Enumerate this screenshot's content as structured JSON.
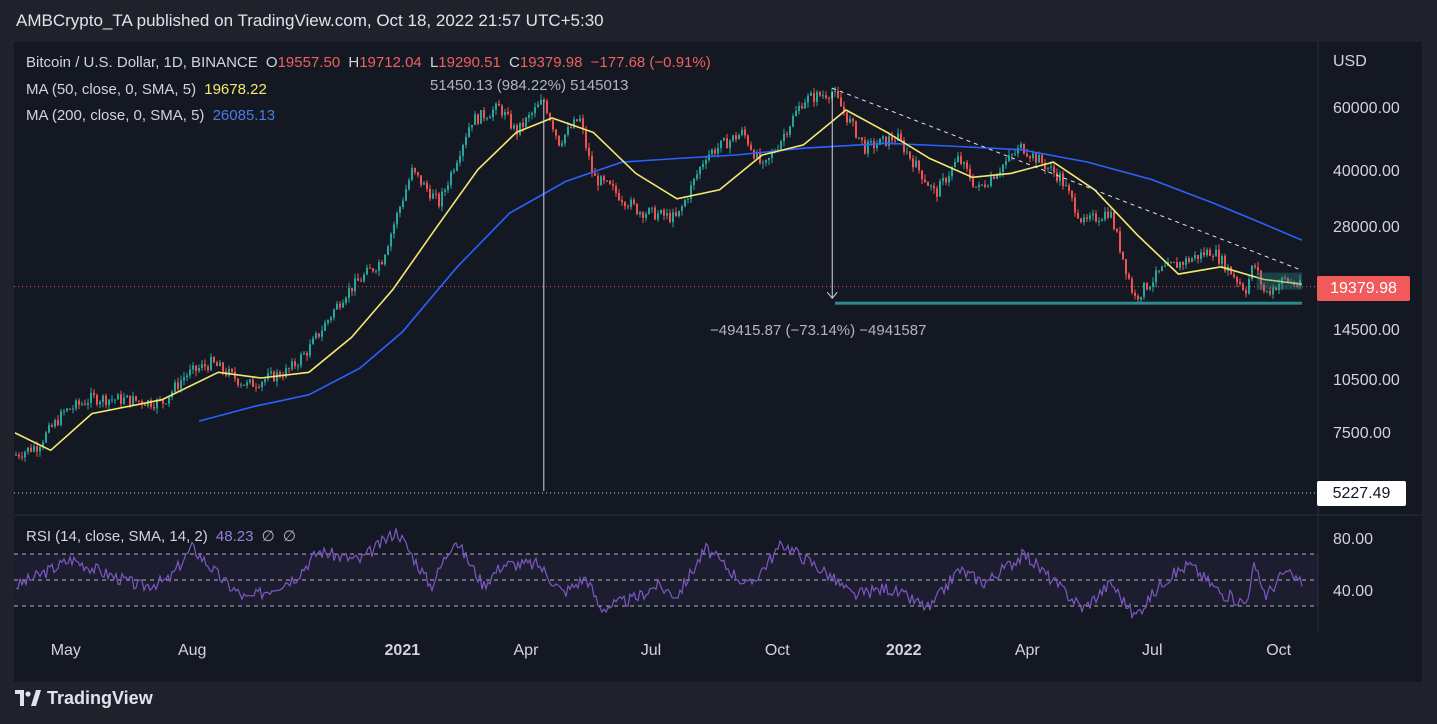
{
  "header": {
    "publisher": "AMBCrypto_TA published on TradingView.com, Oct 18, 2022 21:57 UTC+5:30"
  },
  "footer": {
    "brand": "TradingView"
  },
  "legend": {
    "symbol": "Bitcoin / U.S. Dollar, 1D, BINANCE",
    "open_label": "O",
    "open": "19557.50",
    "high_label": "H",
    "high": "19712.04",
    "low_label": "L",
    "low": "19290.51",
    "close_label": "C",
    "close": "19379.98",
    "change": "−177.68 (−0.91%)",
    "ma50_label": "MA (50, close, 0, SMA, 5)",
    "ma50_value": "19678.22",
    "ma200_label": "MA (200, close, 0, SMA, 5)",
    "ma200_value": "26085.13",
    "rsi_label": "RSI (14, close, SMA, 14, 2)",
    "rsi_value": "48.23",
    "rsi_extra1": "∅",
    "rsi_extra2": "∅"
  },
  "annotations": {
    "measure_up": "51450.13 (984.22%) 5145013",
    "measure_down": "−49415.87 (−73.14%) −4941587",
    "last_price": "19379.98",
    "low_marker": "5227.49"
  },
  "colors": {
    "background": "#20222b",
    "panel": "#141823",
    "up": "#26a69a",
    "down": "#ef5350",
    "ma50": "#f4e96e",
    "ma200": "#2962ff",
    "rsi": "#7e57c2",
    "last_price": "#f05a5a"
  },
  "chart_data": [
    {
      "type": "candlestick",
      "title": "Bitcoin / U.S. Dollar, 1D, BINANCE",
      "ylabel": "USD",
      "y_scale": "log",
      "ylim": [
        5000,
        72000
      ],
      "y_ticks": [
        "60000.00",
        "40000.00",
        "28000.00",
        "14500.00",
        "10500.00",
        "7500.00"
      ],
      "x_ticks": [
        "May",
        "Aug",
        "2021",
        "Apr",
        "Jul",
        "Oct",
        "2022",
        "Apr",
        "Jul",
        "Oct"
      ],
      "x_tick_dates": [
        "2020-05-01",
        "2020-08-01",
        "2021-01-01",
        "2021-04-01",
        "2021-07-01",
        "2021-10-01",
        "2022-01-01",
        "2022-04-01",
        "2022-07-01",
        "2022-10-01"
      ],
      "x_range": [
        "2020-03-25",
        "2022-10-18"
      ],
      "series": [
        {
          "name": "BTCUSD",
          "points": [
            [
              "2020-03-25",
              6600
            ],
            [
              "2020-04-10",
              7000
            ],
            [
              "2020-04-30",
              8700
            ],
            [
              "2020-05-20",
              9500
            ],
            [
              "2020-06-15",
              9400
            ],
            [
              "2020-07-10",
              9200
            ],
            [
              "2020-07-27",
              11000
            ],
            [
              "2020-08-15",
              11900
            ],
            [
              "2020-09-10",
              10300
            ],
            [
              "2020-10-10",
              11300
            ],
            [
              "2020-10-25",
              13000
            ],
            [
              "2020-11-20",
              18500
            ],
            [
              "2020-12-17",
              23000
            ],
            [
              "2021-01-08",
              40500
            ],
            [
              "2021-01-28",
              33000
            ],
            [
              "2021-02-20",
              56000
            ],
            [
              "2021-03-13",
              61000
            ],
            [
              "2021-03-25",
              52000
            ],
            [
              "2021-04-14",
              64000
            ],
            [
              "2021-04-25",
              49000
            ],
            [
              "2021-05-10",
              57000
            ],
            [
              "2021-05-20",
              39000
            ],
            [
              "2021-06-01",
              36500
            ],
            [
              "2021-06-22",
              31500
            ],
            [
              "2021-07-20",
              30000
            ],
            [
              "2021-08-10",
              45000
            ],
            [
              "2021-09-06",
              52000
            ],
            [
              "2021-09-21",
              41000
            ],
            [
              "2021-10-20",
              64000
            ],
            [
              "2021-11-10",
              67500
            ],
            [
              "2021-12-04",
              47000
            ],
            [
              "2021-12-27",
              50500
            ],
            [
              "2022-01-24",
              35000
            ],
            [
              "2022-02-10",
              44000
            ],
            [
              "2022-02-24",
              36000
            ],
            [
              "2022-03-28",
              47500
            ],
            [
              "2022-04-25",
              39000
            ],
            [
              "2022-05-12",
              29000
            ],
            [
              "2022-05-31",
              31500
            ],
            [
              "2022-06-18",
              18000
            ],
            [
              "2022-07-08",
              21500
            ],
            [
              "2022-08-14",
              24500
            ],
            [
              "2022-09-07",
              19000
            ],
            [
              "2022-09-13",
              22500
            ],
            [
              "2022-09-21",
              18500
            ],
            [
              "2022-10-05",
              20300
            ],
            [
              "2022-10-18",
              19379.98
            ]
          ]
        },
        {
          "name": "MA (50, close, 0, SMA, 5)",
          "points": [
            [
              "2020-03-25",
              7600
            ],
            [
              "2020-04-20",
              6800
            ],
            [
              "2020-05-20",
              8600
            ],
            [
              "2020-07-10",
              9400
            ],
            [
              "2020-08-20",
              11200
            ],
            [
              "2020-09-20",
              10800
            ],
            [
              "2020-10-25",
              11200
            ],
            [
              "2020-11-25",
              14000
            ],
            [
              "2020-12-25",
              19000
            ],
            [
              "2021-01-25",
              28000
            ],
            [
              "2021-02-25",
              41000
            ],
            [
              "2021-03-25",
              52000
            ],
            [
              "2021-04-20",
              57000
            ],
            [
              "2021-05-20",
              52000
            ],
            [
              "2021-06-20",
              40000
            ],
            [
              "2021-07-20",
              34000
            ],
            [
              "2021-08-20",
              36000
            ],
            [
              "2021-09-20",
              45000
            ],
            [
              "2021-10-20",
              48000
            ],
            [
              "2021-11-20",
              60000
            ],
            [
              "2021-12-20",
              52000
            ],
            [
              "2022-01-20",
              44000
            ],
            [
              "2022-02-20",
              39000
            ],
            [
              "2022-03-20",
              40000
            ],
            [
              "2022-04-20",
              43000
            ],
            [
              "2022-05-20",
              36000
            ],
            [
              "2022-06-20",
              27000
            ],
            [
              "2022-07-20",
              21000
            ],
            [
              "2022-08-20",
              22000
            ],
            [
              "2022-09-20",
              20300
            ],
            [
              "2022-10-18",
              19678.22
            ]
          ]
        },
        {
          "name": "MA (200, close, 0, SMA, 5)",
          "points": [
            [
              "2020-08-06",
              8200
            ],
            [
              "2020-09-15",
              9000
            ],
            [
              "2020-10-25",
              9700
            ],
            [
              "2020-12-01",
              11500
            ],
            [
              "2021-01-01",
              14500
            ],
            [
              "2021-02-10",
              22000
            ],
            [
              "2021-03-20",
              31000
            ],
            [
              "2021-04-30",
              38000
            ],
            [
              "2021-06-10",
              43000
            ],
            [
              "2021-07-20",
              44000
            ],
            [
              "2021-09-01",
              45000
            ],
            [
              "2021-10-20",
              47000
            ],
            [
              "2021-12-20",
              48500
            ],
            [
              "2022-02-10",
              47500
            ],
            [
              "2022-03-28",
              46500
            ],
            [
              "2022-05-15",
              43000
            ],
            [
              "2022-06-30",
              38500
            ],
            [
              "2022-08-15",
              33000
            ],
            [
              "2022-09-15",
              29500
            ],
            [
              "2022-10-18",
              26085.13
            ]
          ]
        }
      ],
      "markers": {
        "last_price": 19379.98,
        "low": 5227.49
      }
    },
    {
      "type": "line",
      "title": "RSI (14, close, SMA, 14, 2)",
      "ylim": [
        20,
        95
      ],
      "y_ticks": [
        "80.00",
        "40.00"
      ],
      "bands": [
        30,
        50,
        70
      ],
      "series": [
        {
          "name": "RSI",
          "points": [
            [
              "2020-03-25",
              45
            ],
            [
              "2020-04-20",
              58
            ],
            [
              "2020-05-05",
              66
            ],
            [
              "2020-05-30",
              55
            ],
            [
              "2020-06-25",
              45
            ],
            [
              "2020-07-15",
              50
            ],
            [
              "2020-08-01",
              75
            ],
            [
              "2020-08-25",
              48
            ],
            [
              "2020-09-10",
              35
            ],
            [
              "2020-10-15",
              52
            ],
            [
              "2020-11-01",
              72
            ],
            [
              "2020-12-01",
              65
            ],
            [
              "2020-12-28",
              88
            ],
            [
              "2021-01-22",
              45
            ],
            [
              "2021-02-08",
              82
            ],
            [
              "2021-03-01",
              46
            ],
            [
              "2021-03-15",
              62
            ],
            [
              "2021-04-10",
              62
            ],
            [
              "2021-04-28",
              40
            ],
            [
              "2021-05-15",
              52
            ],
            [
              "2021-05-25",
              28
            ],
            [
              "2021-06-20",
              36
            ],
            [
              "2021-07-05",
              46
            ],
            [
              "2021-07-20",
              38
            ],
            [
              "2021-08-10",
              74
            ],
            [
              "2021-09-10",
              45
            ],
            [
              "2021-10-05",
              78
            ],
            [
              "2021-11-05",
              56
            ],
            [
              "2021-11-25",
              38
            ],
            [
              "2021-12-20",
              44
            ],
            [
              "2022-01-20",
              28
            ],
            [
              "2022-02-10",
              58
            ],
            [
              "2022-03-01",
              48
            ],
            [
              "2022-03-30",
              70
            ],
            [
              "2022-04-25",
              44
            ],
            [
              "2022-05-12",
              28
            ],
            [
              "2022-06-01",
              48
            ],
            [
              "2022-06-18",
              22
            ],
            [
              "2022-07-10",
              50
            ],
            [
              "2022-07-28",
              62
            ],
            [
              "2022-08-20",
              40
            ],
            [
              "2022-09-07",
              32
            ],
            [
              "2022-09-13",
              60
            ],
            [
              "2022-09-22",
              38
            ],
            [
              "2022-10-05",
              56
            ],
            [
              "2022-10-18",
              48.23
            ]
          ]
        }
      ]
    }
  ]
}
